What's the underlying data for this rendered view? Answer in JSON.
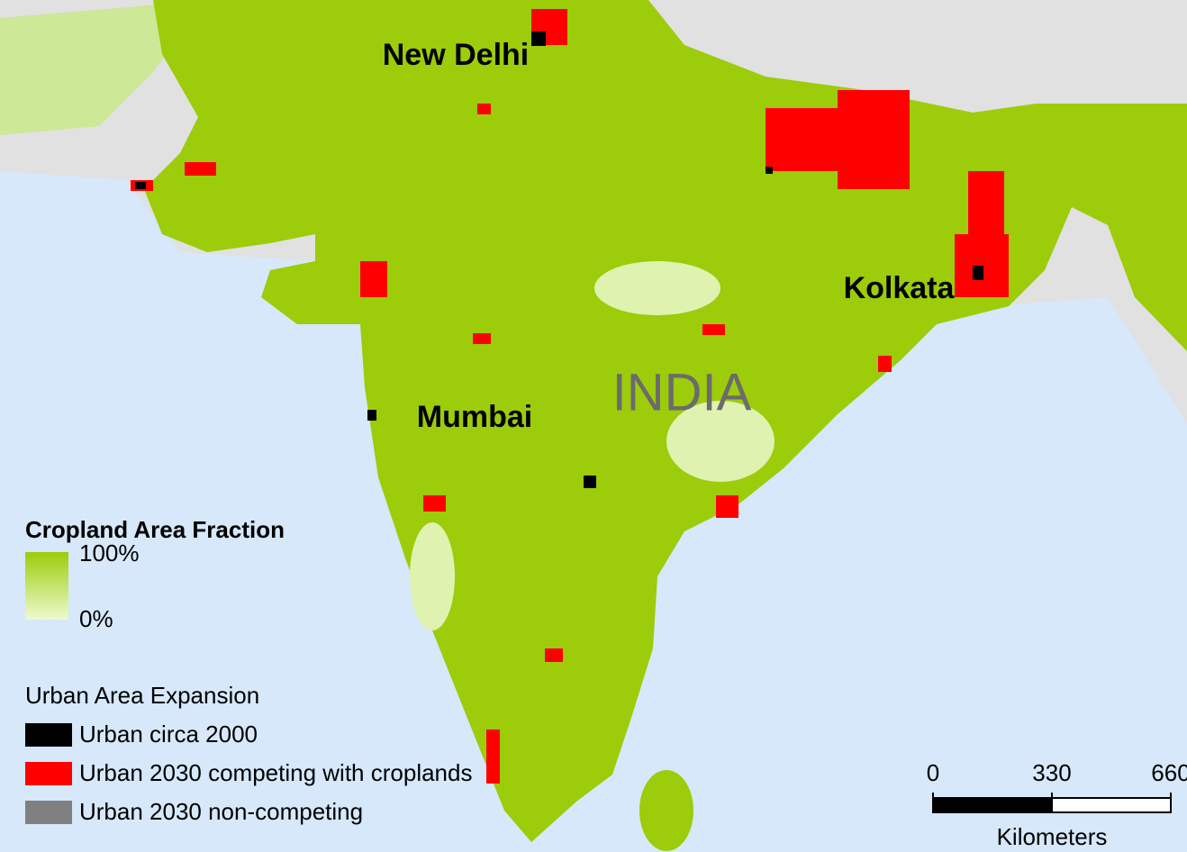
{
  "map": {
    "cities": [
      "New Delhi",
      "Kolkata",
      "Mumbai"
    ],
    "country": "INDIA",
    "legend": {
      "cropland": {
        "title": "Cropland Area Fraction",
        "high": "100%",
        "low": "0%",
        "colors": [
          "#9ccc0a",
          "#eefad0"
        ]
      },
      "urban": {
        "title": "Urban Area Expansion",
        "items": [
          {
            "name": "Urban circa 2000",
            "color": "#000000"
          },
          {
            "name": "Urban 2030 competing with croplands",
            "color": "#ff0000"
          },
          {
            "name": "Urban 2030 non-competing",
            "color": "#808080"
          }
        ]
      }
    },
    "scale": {
      "ticks": [
        0,
        330,
        660
      ],
      "unit": "Kilometers"
    }
  }
}
